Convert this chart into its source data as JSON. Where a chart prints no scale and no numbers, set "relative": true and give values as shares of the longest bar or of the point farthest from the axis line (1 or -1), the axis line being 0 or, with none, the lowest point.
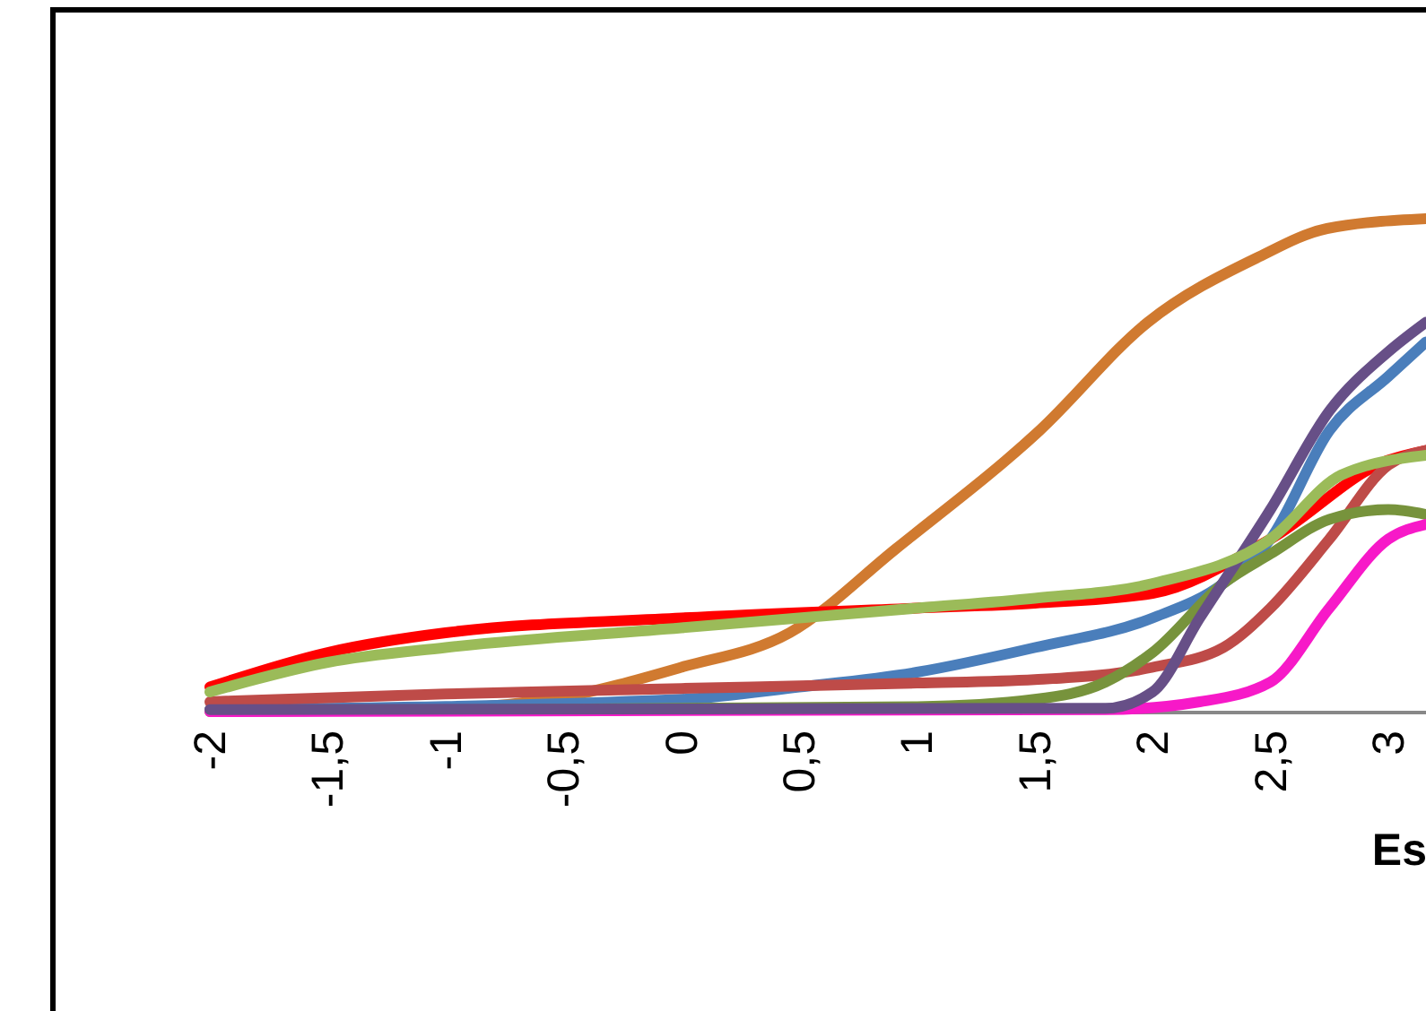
{
  "chart_data": {
    "type": "line",
    "relative": true,
    "xlabel": "Es",
    "xlim": [
      -2,
      3.16
    ],
    "xticks": [
      -2,
      {
        "value": -1.5,
        "label": "-1,5"
      },
      -1,
      {
        "value": -0.5,
        "label": "-0,5"
      },
      0,
      {
        "value": 0.5,
        "label": "0,5"
      },
      1,
      {
        "value": 1.5,
        "label": "1,5"
      },
      2,
      {
        "value": 2.5,
        "label": "2,5"
      },
      3
    ],
    "grid": false,
    "legend": false,
    "marker": "none",
    "line_style": "solid",
    "series": [
      {
        "color": "#d07a30",
        "x": [
          -2,
          -1,
          -0.5,
          0,
          0.46,
          0.91,
          1.52,
          1.98,
          2.44,
          2.74,
          3.16
        ],
        "values": [
          0.004,
          0.007,
          0.03,
          0.09,
          0.16,
          0.33,
          0.57,
          0.79,
          0.92,
          0.98,
          1.0
        ]
      },
      {
        "color": "#ff0000",
        "x": [
          -2,
          -1.5,
          -1,
          0,
          1,
          1.5,
          2,
          2.5,
          3,
          3.16
        ],
        "values": [
          0.05,
          0.12,
          0.16,
          0.19,
          0.21,
          0.22,
          0.24,
          0.35,
          0.51,
          0.53
        ]
      },
      {
        "color": "#4a7ebb",
        "x": [
          -2,
          0,
          0.5,
          1,
          1.5,
          2,
          2.3,
          2.5,
          2.75,
          3,
          3.16
        ],
        "values": [
          0.004,
          0.025,
          0.05,
          0.08,
          0.13,
          0.19,
          0.26,
          0.35,
          0.57,
          0.68,
          0.75
        ]
      },
      {
        "color": "#be4b48",
        "x": [
          -2,
          -1,
          0,
          1,
          1.5,
          2,
          2.3,
          2.5,
          2.75,
          3,
          3.16
        ],
        "values": [
          0.02,
          0.036,
          0.047,
          0.058,
          0.065,
          0.09,
          0.13,
          0.21,
          0.35,
          0.5,
          0.53
        ]
      },
      {
        "color": "#77933c",
        "x": [
          -2,
          1,
          1.5,
          1.8,
          2,
          2.3,
          2.5,
          2.75,
          3,
          3.16
        ],
        "values": [
          0,
          0.01,
          0.025,
          0.06,
          0.12,
          0.26,
          0.32,
          0.39,
          0.41,
          0.4
        ]
      },
      {
        "color": "#f719c8",
        "x": [
          -2,
          1.8,
          2.2,
          2.5,
          2.75,
          3,
          3.16
        ],
        "values": [
          0,
          0.004,
          0.02,
          0.06,
          0.21,
          0.35,
          0.38
        ]
      },
      {
        "color": "#674f87",
        "x": [
          -2,
          1.8,
          2,
          2.2,
          2.5,
          2.75,
          3,
          3.16
        ],
        "values": [
          0.004,
          0.007,
          0.04,
          0.19,
          0.41,
          0.61,
          0.73,
          0.79
        ]
      },
      {
        "color": "#9bbb59",
        "x": [
          -2,
          -1.5,
          -1,
          0,
          0.5,
          1,
          1.5,
          2,
          2.5,
          2.8,
          3.16
        ],
        "values": [
          0.04,
          0.1,
          0.13,
          0.17,
          0.19,
          0.21,
          0.23,
          0.26,
          0.35,
          0.48,
          0.52
        ]
      }
    ]
  }
}
